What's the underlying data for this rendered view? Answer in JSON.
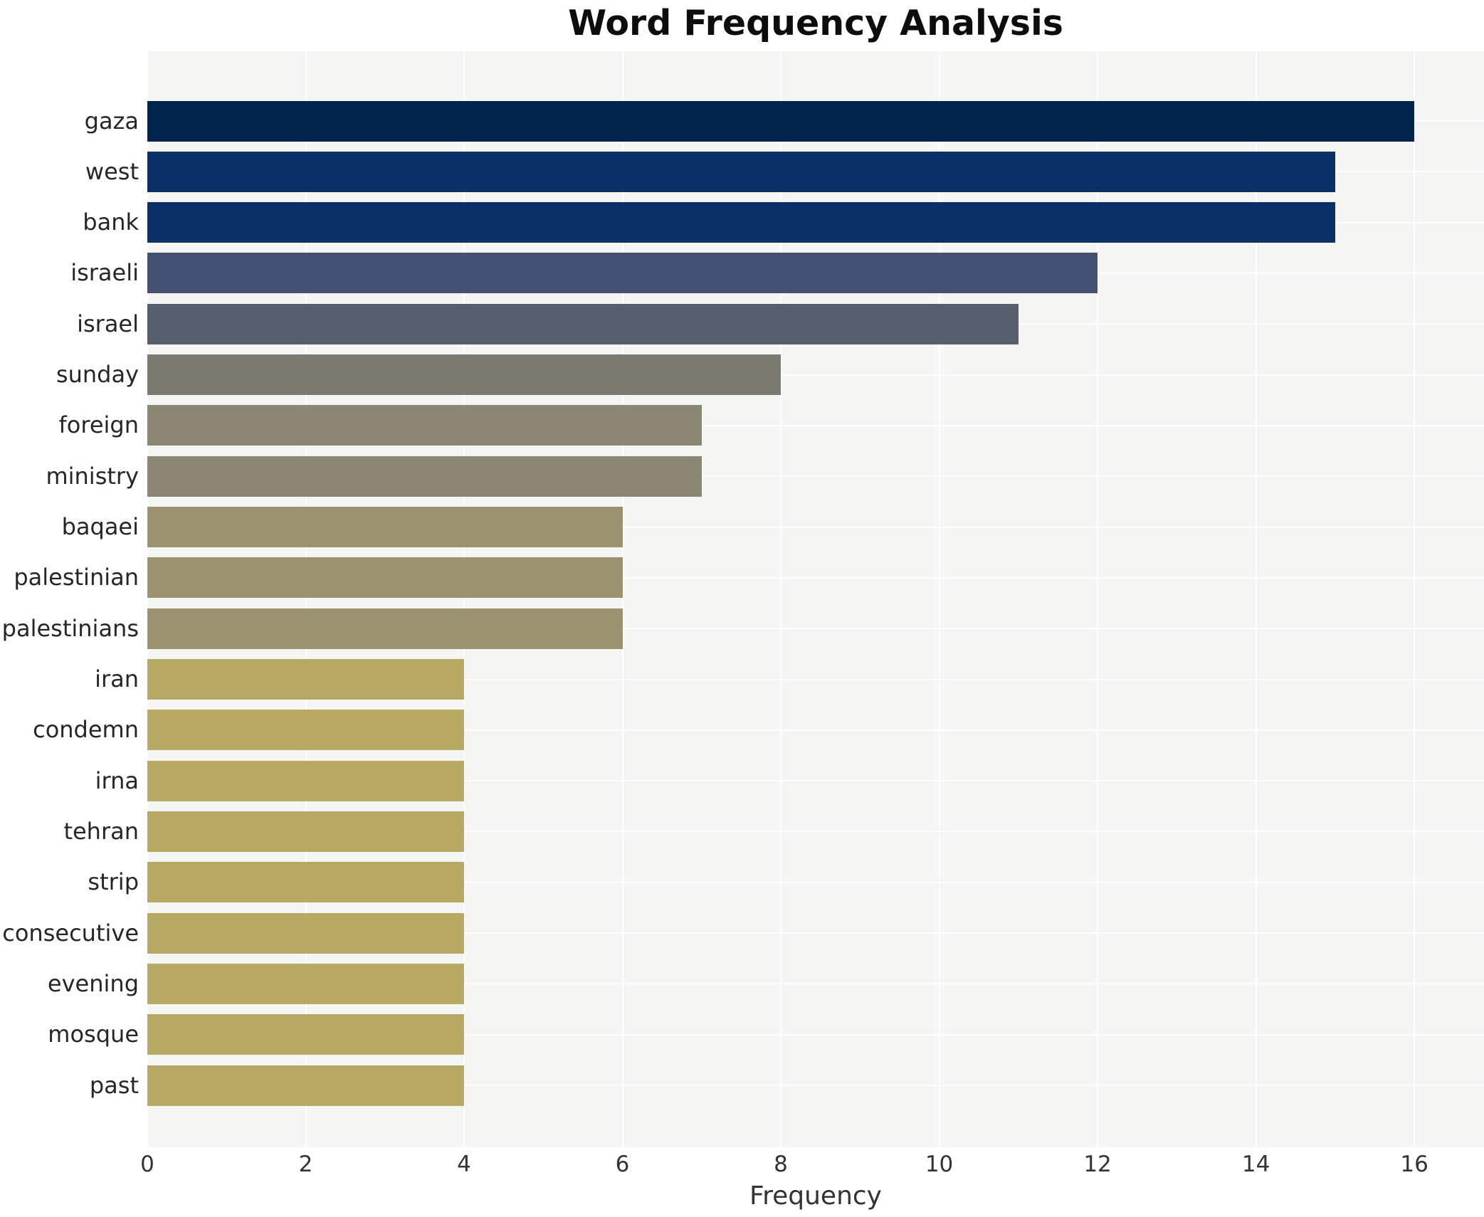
{
  "chart_data": {
    "type": "bar",
    "orientation": "horizontal",
    "title": "Word Frequency Analysis",
    "xlabel": "Frequency",
    "ylabel": "",
    "categories": [
      "gaza",
      "west",
      "bank",
      "israeli",
      "israel",
      "sunday",
      "foreign",
      "ministry",
      "baqaei",
      "palestinian",
      "palestinians",
      "iran",
      "condemn",
      "irna",
      "tehran",
      "strip",
      "consecutive",
      "evening",
      "mosque",
      "past"
    ],
    "values": [
      16,
      15,
      15,
      12,
      11,
      8,
      7,
      7,
      6,
      6,
      6,
      4,
      4,
      4,
      4,
      4,
      4,
      4,
      4,
      4
    ],
    "bar_colors": [
      "#02234d",
      "#0a3166",
      "#0a3166",
      "#455170",
      "#555d6f",
      "#7b7a71",
      "#8a8773",
      "#8a8773",
      "#9a926f",
      "#9a926f",
      "#9a926f",
      "#b7a864",
      "#b7a864",
      "#b7a864",
      "#b7a864",
      "#b7a864",
      "#b7a864",
      "#b7a864",
      "#b7a864",
      "#b7a864"
    ],
    "xticks": [
      0,
      2,
      4,
      6,
      8,
      10,
      12,
      14,
      16
    ],
    "xlim": [
      0,
      16.88
    ],
    "grid": true,
    "legend": false,
    "colors": {
      "page_background": "#ffffff",
      "plot_background": "#f5f5f3",
      "gridline": "#ffffff",
      "title_text": "#0d0d0d",
      "axis_tick_text": "#333333",
      "category_label_text": "#262626"
    }
  }
}
